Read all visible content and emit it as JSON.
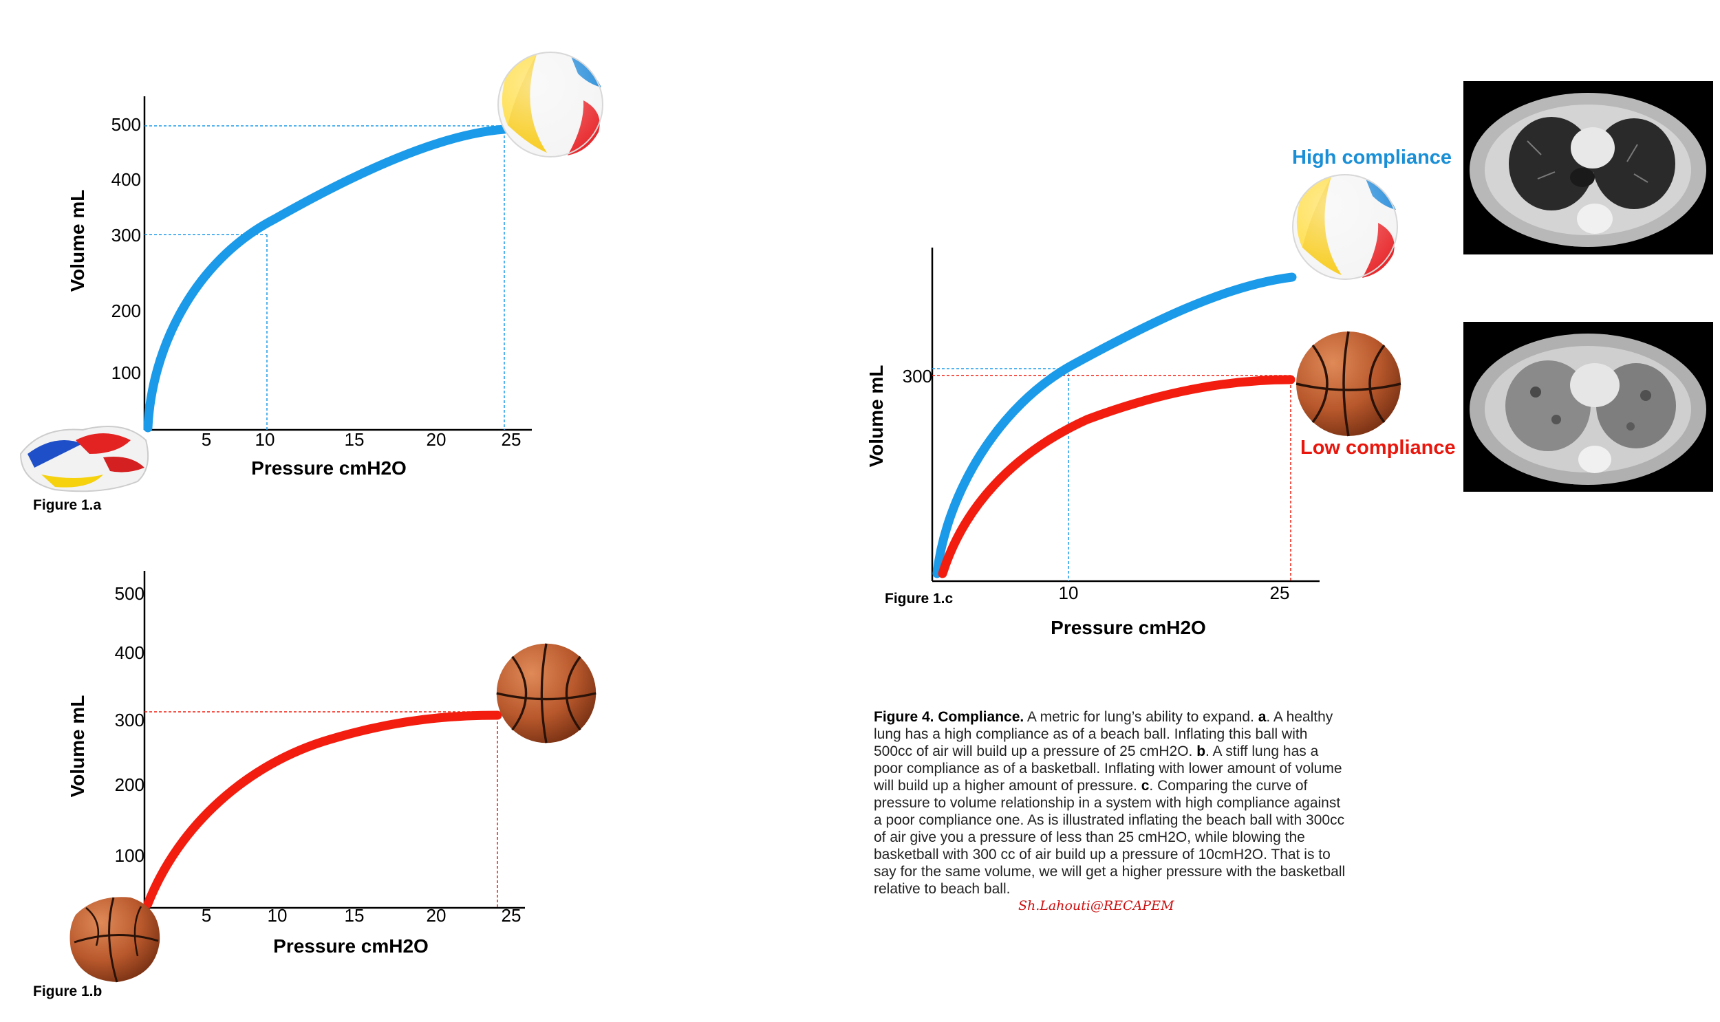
{
  "figure_a": {
    "label": "Figure 1.a",
    "y_axis_title": "Volume mL",
    "x_axis_title": "Pressure cmH2O",
    "y_ticks": [
      "100",
      "200",
      "300",
      "400",
      "500"
    ],
    "x_ticks": [
      "5",
      "10",
      "15",
      "20",
      "25"
    ]
  },
  "figure_b": {
    "label": "Figure 1.b",
    "y_axis_title": "Volume mL",
    "x_axis_title": "Pressure cmH2O",
    "y_ticks": [
      "100",
      "200",
      "300",
      "400",
      "500"
    ],
    "x_ticks": [
      "5",
      "10",
      "15",
      "20",
      "25"
    ]
  },
  "figure_c": {
    "label": "Figure 1.c",
    "y_axis_title": "Volume mL",
    "x_axis_title": "Pressure cmH2O",
    "y_tick": "300",
    "x_ticks": [
      "10",
      "25"
    ],
    "high_label": "High compliance",
    "low_label": "Low compliance"
  },
  "colors": {
    "high_compliance": "#1a9ae8",
    "low_compliance": "#f21d0f"
  },
  "caption": {
    "title": "Figure 4. Compliance.",
    "s1": " A metric for lung’s ability to expand. ",
    "a": "a",
    "s2": ". A healthy lung has a high compliance as of a beach ball. Inflating this ball with 500cc of air will build up a pressure of 25 cmH2O. ",
    "b": "b",
    "s3": ". A stiff lung has a poor compliance as of a basketball. Inflating with lower amount of volume will build up a higher amount of pressure. ",
    "c": "c",
    "s4": ". Comparing the curve of pressure to volume relationship in a system with high compliance against a poor compliance one. As is illustrated inflating the beach ball with 300cc of air give you a pressure of less than 25 cmH2O, while blowing the basketball with 300 cc of air build up a pressure of 10cmH2O. That is to say for the same volume, we will get a higher pressure with the basketball relative to beach ball."
  },
  "signature": "Sh.Lahouti@RECAPEM",
  "chart_data": [
    {
      "type": "line",
      "x": [
        0,
        1,
        3,
        5,
        10,
        15,
        20,
        25
      ],
      "series": [
        {
          "values": [
            0,
            80,
            150,
            195,
            300,
            390,
            455,
            495
          ]
        }
      ],
      "xlabel": "Pressure cmH2O",
      "ylabel": "Volume mL",
      "xlim": [
        0,
        26
      ],
      "ylim": [
        0,
        550
      ]
    },
    {
      "type": "line",
      "x": [
        0,
        5,
        10,
        15,
        20,
        25
      ],
      "series": [
        {
          "values": [
            0,
            150,
            245,
            290,
            310,
            315
          ]
        }
      ],
      "xlabel": "Pressure cmH2O",
      "ylabel": "Volume mL",
      "xlim": [
        0,
        26
      ],
      "ylim": [
        0,
        550
      ]
    },
    {
      "type": "line",
      "x": [
        0,
        10,
        25
      ],
      "series": [
        {
          "name": "High compliance",
          "values": [
            0,
            300,
            480
          ]
        },
        {
          "name": "Low compliance",
          "values": [
            0,
            210,
            290
          ]
        }
      ],
      "xlabel": "Pressure cmH2O",
      "ylabel": "Volume mL"
    }
  ]
}
